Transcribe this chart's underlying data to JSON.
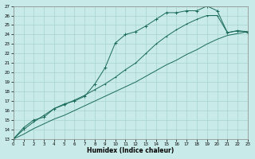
{
  "xlabel": "Humidex (Indice chaleur)",
  "xlim": [
    0,
    23
  ],
  "ylim": [
    13,
    27
  ],
  "xticks": [
    0,
    1,
    2,
    3,
    4,
    5,
    6,
    7,
    8,
    9,
    10,
    11,
    12,
    13,
    14,
    15,
    16,
    17,
    18,
    19,
    20,
    21,
    22,
    23
  ],
  "yticks": [
    13,
    14,
    15,
    16,
    17,
    18,
    19,
    20,
    21,
    22,
    23,
    24,
    25,
    26,
    27
  ],
  "bg_color": "#c8eae8",
  "grid_color": "#a8d4d0",
  "line_color": "#1a6b5a",
  "line1_x": [
    0,
    1,
    2,
    3,
    4,
    5,
    6,
    7,
    8,
    9,
    10,
    11,
    12,
    13,
    14,
    15,
    16,
    17,
    18,
    19,
    20,
    21,
    22,
    23
  ],
  "line1_y": [
    13.0,
    14.2,
    15.0,
    15.3,
    16.2,
    16.7,
    17.0,
    17.5,
    18.8,
    20.5,
    23.1,
    24.0,
    24.3,
    24.9,
    25.6,
    26.3,
    26.3,
    26.5,
    26.5,
    27.0,
    26.5,
    24.2,
    24.4,
    24.2
  ],
  "line2_x": [
    0,
    1,
    2,
    3,
    4,
    5,
    6,
    7,
    8,
    9,
    10,
    11,
    12,
    13,
    14,
    15,
    16,
    17,
    18,
    19,
    20,
    21,
    22,
    23
  ],
  "line2_y": [
    13.0,
    14.0,
    14.8,
    15.5,
    16.2,
    16.6,
    17.1,
    17.6,
    18.2,
    18.8,
    19.5,
    20.3,
    21.0,
    22.0,
    23.0,
    23.8,
    24.5,
    25.1,
    25.6,
    26.0,
    26.0,
    24.2,
    24.4,
    24.3
  ],
  "line3_x": [
    0,
    1,
    2,
    3,
    4,
    5,
    6,
    7,
    8,
    9,
    10,
    11,
    12,
    13,
    14,
    15,
    16,
    17,
    18,
    19,
    20,
    21,
    22,
    23
  ],
  "line3_y": [
    13.0,
    13.5,
    14.1,
    14.6,
    15.1,
    15.5,
    16.0,
    16.5,
    17.0,
    17.5,
    18.0,
    18.5,
    19.0,
    19.6,
    20.2,
    20.8,
    21.3,
    21.9,
    22.4,
    23.0,
    23.5,
    23.9,
    24.1,
    24.3
  ]
}
